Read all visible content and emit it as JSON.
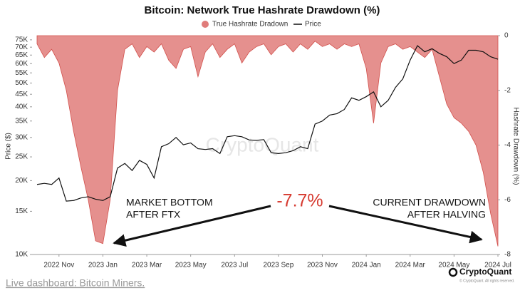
{
  "chart_data": {
    "type": "combo",
    "title": "Bitcoin: Network True Hashrate Drawdown (%)",
    "y_label": "Price ($)",
    "y2_label": "Hashrate Drawdown (%)",
    "log_y": true,
    "grid": false,
    "categories": [
      null,
      null,
      null,
      "2022 Nov",
      null,
      null,
      null,
      null,
      null,
      "2023 Jan",
      null,
      null,
      null,
      null,
      null,
      "2023 Mar",
      null,
      null,
      null,
      null,
      null,
      "2023 May",
      null,
      null,
      null,
      null,
      null,
      "2023 Jul",
      null,
      null,
      null,
      null,
      null,
      "2023 Sep",
      null,
      null,
      null,
      null,
      null,
      "2023 Nov",
      null,
      null,
      null,
      null,
      null,
      "2024 Jan",
      null,
      null,
      null,
      null,
      null,
      "2024 Mar",
      null,
      null,
      null,
      null,
      null,
      "2024 May",
      null,
      null,
      null,
      null,
      null,
      "2024 Jul"
    ],
    "ylim": [
      10000,
      78000
    ],
    "yticks": [
      {
        "value": 10000,
        "label": "10K"
      },
      {
        "value": 15000,
        "label": "15K"
      },
      {
        "value": 20000,
        "label": "20K"
      },
      {
        "value": 25000,
        "label": "25K"
      },
      {
        "value": 30000,
        "label": "30K"
      },
      {
        "value": 35000,
        "label": "35K"
      },
      {
        "value": 40000,
        "label": "40K"
      },
      {
        "value": 45000,
        "label": "45K"
      },
      {
        "value": 50000,
        "label": "50K"
      },
      {
        "value": 55000,
        "label": "55K"
      },
      {
        "value": 60000,
        "label": "60K"
      },
      {
        "value": 65000,
        "label": "65K"
      },
      {
        "value": 70000,
        "label": "70K"
      },
      {
        "value": 75000,
        "label": "75K"
      }
    ],
    "y2lim": [
      -8,
      0
    ],
    "y2ticks": [
      0,
      -2,
      -4,
      -6,
      -8
    ],
    "series": [
      {
        "name": "True Hashrate Dradown",
        "type": "area",
        "axis": "y2",
        "color": "#e07c7a",
        "values": [
          -0.3,
          -0.8,
          -0.5,
          -1.0,
          -2.0,
          -3.5,
          -4.8,
          -6.0,
          -7.5,
          -7.6,
          -6.0,
          -2.0,
          -0.5,
          -0.3,
          -0.8,
          -0.4,
          -0.6,
          -0.3,
          -0.9,
          -1.2,
          -0.5,
          -0.4,
          -1.5,
          -0.6,
          -0.3,
          -0.8,
          -0.5,
          -0.3,
          -1.0,
          -0.6,
          -0.4,
          -0.3,
          -0.7,
          -0.4,
          -0.3,
          -0.6,
          -0.3,
          -0.5,
          -0.2,
          -0.4,
          -0.3,
          -0.5,
          -0.3,
          -0.4,
          -0.3,
          -1.2,
          -3.2,
          -1.0,
          -0.4,
          -0.3,
          -0.5,
          -0.4,
          -0.6,
          -0.8,
          -0.5,
          -1.5,
          -2.5,
          -3.0,
          -3.2,
          -3.5,
          -4.0,
          -5.0,
          -6.5,
          -7.7
        ]
      },
      {
        "name": "Price",
        "type": "line",
        "color": "#111111",
        "values": [
          19300,
          19500,
          19300,
          20500,
          16500,
          16600,
          17000,
          17200,
          16800,
          16600,
          17200,
          22500,
          23500,
          22000,
          24200,
          23300,
          20500,
          27500,
          28300,
          30000,
          28000,
          28500,
          27000,
          26800,
          27000,
          25800,
          30200,
          30500,
          30200,
          29300,
          29200,
          29400,
          26000,
          25800,
          26000,
          26500,
          27500,
          27000,
          34000,
          35000,
          37000,
          37500,
          39000,
          43500,
          42500,
          44000,
          46000,
          40000,
          42500,
          48000,
          52000,
          62000,
          71000,
          67000,
          69000,
          66000,
          64000,
          60000,
          62000,
          68000,
          68000,
          67000,
          64000,
          62500
        ]
      }
    ],
    "annotations": [
      "MARKET BOTTOM",
      "AFTER FTX",
      "-7.7%",
      "CURRENT DRAWDOWN",
      "AFTER HALVING"
    ],
    "watermark": "CryptoQuant",
    "brand": "CryptoQuant",
    "copyright": "© CryptoQuant. All rights reserved.",
    "footer_link": "Live dashboard: Bitcoin Miners."
  }
}
